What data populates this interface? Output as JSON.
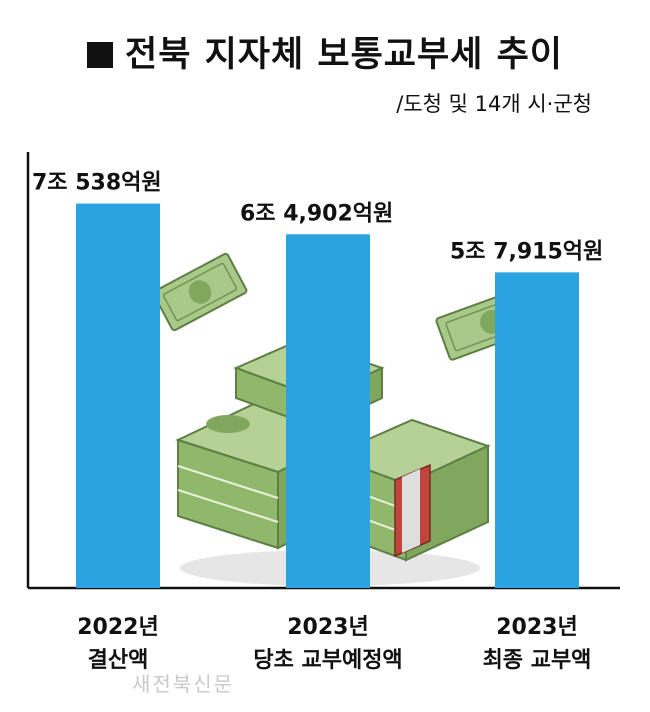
{
  "title": "전북 지자체 보통교부세 추이",
  "subtitle": "/도청 및 14개 시·군청",
  "watermark": "새전북신문",
  "colors": {
    "bar": "#2aa3e0",
    "axis": "#111111",
    "money": "#8fb86b",
    "band": "#c0453c"
  },
  "chart_data": {
    "type": "bar",
    "title": "전북 지자체 보통교부세 추이",
    "subtitle": "/도청 및 14개 시·군청",
    "unit": "억원",
    "categories": [
      [
        "2022년",
        "결산액"
      ],
      [
        "2023년",
        "당초 교부예정액"
      ],
      [
        "2023년",
        "최종 교부액"
      ]
    ],
    "values": [
      70538,
      64902,
      57915
    ],
    "labels": [
      "7조 538억원",
      "6조 4,902억원",
      "5조 7,915억원"
    ],
    "ylim": [
      0,
      80000
    ],
    "grid": false,
    "legend": "none"
  }
}
